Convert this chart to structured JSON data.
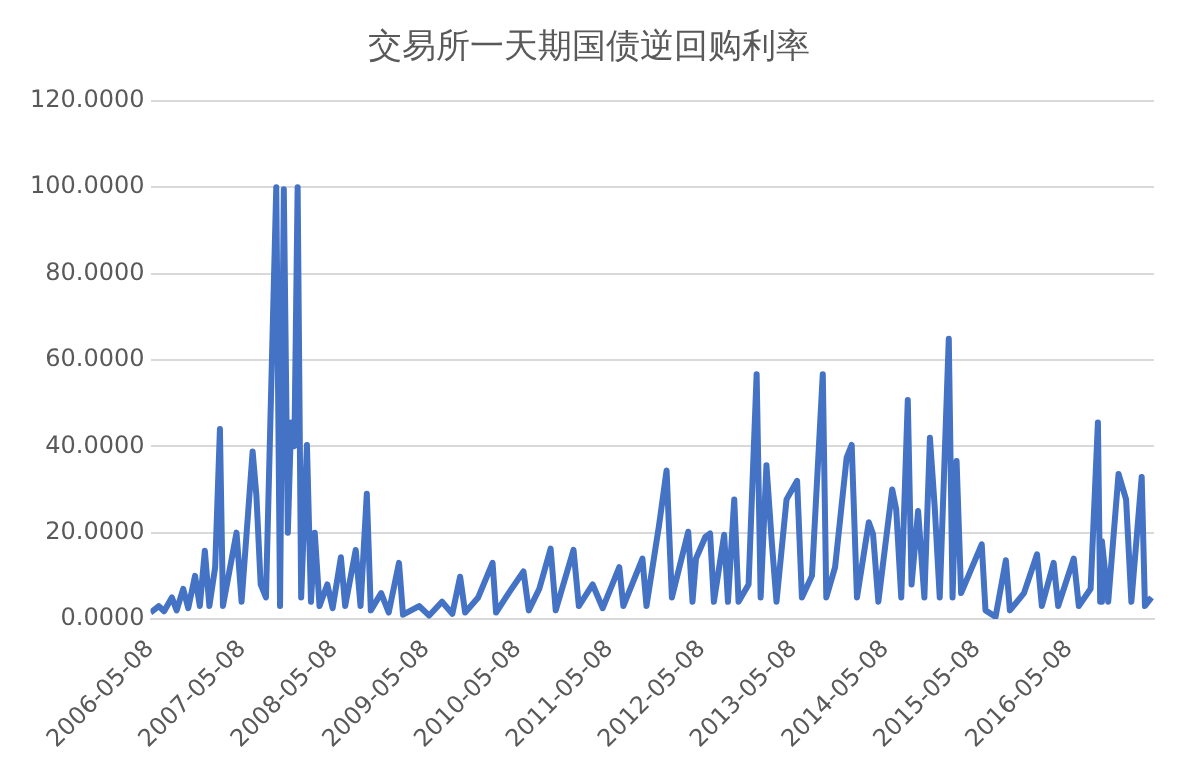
{
  "chart_data": {
    "type": "line",
    "title": "交易所一天期国债逆回购利率",
    "x": [
      "2006-05-08",
      "2006-06-10",
      "2006-07-01",
      "2006-08-01",
      "2006-08-20",
      "2006-09-15",
      "2006-10-05",
      "2006-11-01",
      "2006-11-20",
      "2006-12-10",
      "2006-12-28",
      "2007-01-20",
      "2007-02-08",
      "2007-02-20",
      "2007-04-15",
      "2007-05-05",
      "2007-06-18",
      "2007-07-03",
      "2007-07-20",
      "2007-08-10",
      "2007-09-20",
      "2007-10-05",
      "2007-10-20",
      "2007-11-05",
      "2007-11-18",
      "2007-12-01",
      "2007-12-14",
      "2007-12-28",
      "2008-01-20",
      "2008-02-05",
      "2008-02-20",
      "2008-03-10",
      "2008-04-10",
      "2008-05-01",
      "2008-06-03",
      "2008-06-20",
      "2008-08-01",
      "2008-08-20",
      "2008-09-14",
      "2008-09-30",
      "2008-11-10",
      "2008-12-10",
      "2009-01-20",
      "2009-02-05",
      "2009-04-10",
      "2009-05-20",
      "2009-07-10",
      "2009-08-20",
      "2009-09-20",
      "2009-10-10",
      "2009-12-01",
      "2010-01-27",
      "2010-02-10",
      "2010-04-01",
      "2010-05-30",
      "2010-06-20",
      "2010-08-01",
      "2010-09-15",
      "2010-10-05",
      "2010-12-15",
      "2011-01-05",
      "2011-03-01",
      "2011-04-10",
      "2011-06-15",
      "2011-07-01",
      "2011-09-15",
      "2011-10-01",
      "2011-11-20",
      "2011-12-20",
      "2012-01-10",
      "2012-03-15",
      "2012-04-01",
      "2012-04-15",
      "2012-05-22",
      "2012-06-10",
      "2012-06-25",
      "2012-08-05",
      "2012-08-20",
      "2012-09-14",
      "2012-10-01",
      "2012-11-10",
      "2012-12-12",
      "2012-12-28",
      "2013-01-20",
      "2013-02-10",
      "2013-03-01",
      "2013-04-10",
      "2013-05-22",
      "2013-06-10",
      "2013-07-20",
      "2013-09-01",
      "2013-09-15",
      "2013-10-20",
      "2013-12-05",
      "2013-12-25",
      "2014-01-15",
      "2014-03-03",
      "2014-03-20",
      "2014-04-10",
      "2014-06-04",
      "2014-06-20",
      "2014-07-10",
      "2014-08-05",
      "2014-08-20",
      "2014-09-15",
      "2014-10-10",
      "2014-11-01",
      "2014-11-20",
      "2014-12-10",
      "2015-01-15",
      "2015-01-30",
      "2015-02-15",
      "2015-03-05",
      "2015-05-26",
      "2015-06-10",
      "2015-07-20",
      "2015-08-30",
      "2015-09-15",
      "2015-11-10",
      "2016-01-01",
      "2016-01-20",
      "2016-03-07",
      "2016-03-25",
      "2016-05-26",
      "2016-06-15",
      "2016-08-01",
      "2016-08-30",
      "2016-09-08",
      "2016-09-15",
      "2016-10-10",
      "2016-11-20",
      "2016-12-20",
      "2017-01-10",
      "2017-02-20",
      "2017-03-05",
      "2017-03-31"
    ],
    "series": [
      {
        "color": "#4472c4",
        "values": [
          1.5,
          3,
          1.8,
          5,
          2,
          7,
          2.5,
          10,
          3,
          15.8,
          3,
          12,
          44,
          3,
          20,
          4,
          38.8,
          28.6,
          8,
          5,
          100,
          3,
          99.5,
          20,
          45.5,
          40,
          100,
          5,
          40.3,
          4,
          20,
          3,
          8,
          2.5,
          14.3,
          3,
          16,
          3,
          29,
          2,
          6,
          1.5,
          13,
          1,
          3,
          0.8,
          4,
          1.2,
          9.8,
          1.5,
          5,
          13,
          1.5,
          6,
          11,
          2,
          7,
          16.3,
          2,
          16,
          3,
          8,
          2.5,
          12,
          3,
          14,
          3,
          21.7,
          34.4,
          5,
          20.2,
          4,
          14,
          19,
          19.8,
          4,
          19.5,
          4,
          27.7,
          4,
          8,
          56.7,
          5,
          35.6,
          18,
          4,
          27.7,
          32,
          5,
          10,
          56.7,
          5,
          12,
          37.4,
          40.3,
          5,
          22.4,
          19.6,
          4,
          30,
          25.4,
          5,
          50.7,
          8,
          25,
          5,
          42,
          26,
          5,
          64.9,
          5,
          36.6,
          6,
          17.3,
          2,
          0.5,
          13.6,
          2,
          6,
          15,
          3,
          13,
          3,
          14,
          3,
          7,
          45.5,
          4,
          18,
          4,
          33.6,
          27.7,
          4,
          32.9,
          3,
          5
        ]
      }
    ],
    "xlim": [
      "2006-05-08",
      "2017-04-10"
    ],
    "xticks": [
      "2006-05-08",
      "2007-05-08",
      "2008-05-08",
      "2009-05-08",
      "2010-05-08",
      "2011-05-08",
      "2012-05-08",
      "2013-05-08",
      "2014-05-08",
      "2015-05-08",
      "2016-05-08"
    ],
    "ylim": [
      0,
      120
    ],
    "yticks": [
      {
        "value": 0,
        "label": "0.0000"
      },
      {
        "value": 20,
        "label": "20.0000"
      },
      {
        "value": 40,
        "label": "40.0000"
      },
      {
        "value": 60,
        "label": "60.0000"
      },
      {
        "value": 80,
        "label": "80.0000"
      },
      {
        "value": 100,
        "label": "100.0000"
      },
      {
        "value": 120,
        "label": "120.0000"
      }
    ],
    "grid": "y",
    "legend": false,
    "marker": "none",
    "line_style": "solid"
  }
}
